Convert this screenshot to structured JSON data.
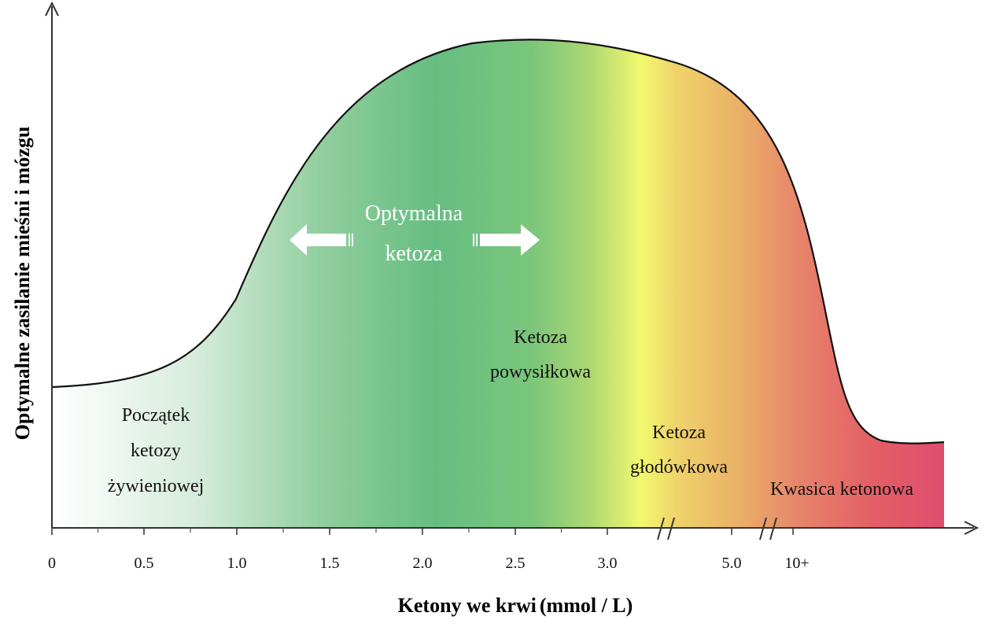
{
  "chart_data": {
    "type": "area",
    "xlabel_main": "Ketony we krwi",
    "xlabel_unit": "mmol / L",
    "ylabel": "Optymalne zasilanie mieśni i mózgu",
    "ticks": [
      {
        "value": 0,
        "label": "0"
      },
      {
        "value": 0.5,
        "label": "0.5"
      },
      {
        "value": 1.0,
        "label": "1.0"
      },
      {
        "value": 1.5,
        "label": "1.5"
      },
      {
        "value": 2.0,
        "label": "2.0"
      },
      {
        "value": 2.5,
        "label": "2.5"
      },
      {
        "value": 3.0,
        "label": "3.0"
      },
      {
        "value": 5.0,
        "label": "5.0"
      },
      {
        "value": 10.0,
        "label": "10+"
      }
    ],
    "axis_breaks": [
      {
        "between": [
          3.0,
          5.0
        ]
      },
      {
        "between": [
          5.0,
          10.0
        ]
      }
    ],
    "curve": {
      "description_points": [
        {
          "x": 0,
          "level": 0.34
        },
        {
          "x": 0.5,
          "level": 0.38
        },
        {
          "x": 1.0,
          "level": 0.57
        },
        {
          "x": 1.5,
          "level": 0.89
        },
        {
          "x": 2.0,
          "level": 0.98
        },
        {
          "x": 2.5,
          "level": 1.0
        },
        {
          "x": 3.0,
          "level": 0.98
        },
        {
          "x": 5.0,
          "level": 0.82
        },
        {
          "x": 10.0,
          "level": 0.38
        },
        {
          "x": "end",
          "level": 0.2
        }
      ]
    },
    "zones": [
      {
        "lines": [
          "Początek",
          "ketozy",
          "żywieniowej"
        ],
        "style": "dark"
      },
      {
        "lines": [
          "Optymalna",
          "ketoza"
        ],
        "style": "white-arrows"
      },
      {
        "lines": [
          "Ketoza",
          "powysiłkowa"
        ],
        "style": "dark"
      },
      {
        "lines": [
          "Ketoza",
          "głodówkowa"
        ],
        "style": "dark"
      },
      {
        "lines": [
          "Kwasica ketonowa"
        ],
        "style": "dark"
      }
    ],
    "gradient_colors": [
      "#ffffff",
      "#66bd82",
      "#f3f96e",
      "#e95f60",
      "#e04d6e"
    ]
  }
}
